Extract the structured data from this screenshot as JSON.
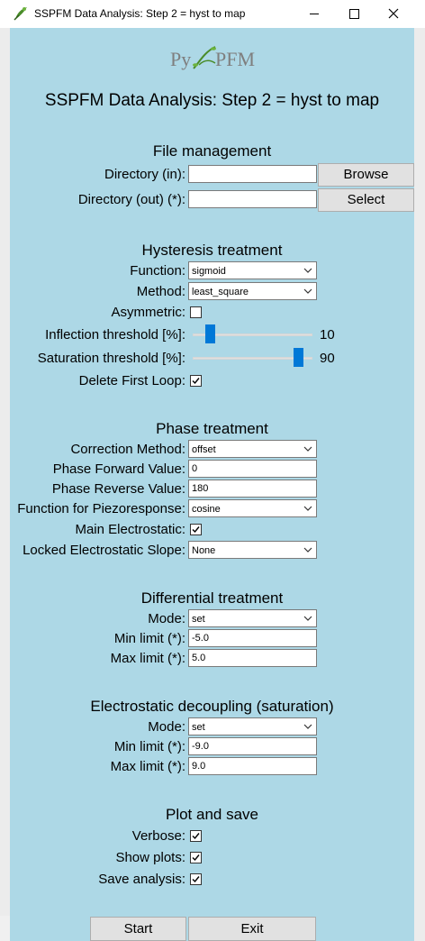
{
  "window": {
    "title": "SSPFM Data Analysis: Step 2 = hyst to map",
    "icon": "pfm-leaf-icon"
  },
  "logo": {
    "left": "Py",
    "right": "PFM"
  },
  "main_title": "SSPFM Data Analysis: Step 2 = hyst to map",
  "colors": {
    "background": "#add8e6",
    "accent": "#0078d7",
    "logo_green": "#4a8c2a",
    "logo_gray": "#7f7f7f"
  },
  "file_management": {
    "title": "File management",
    "dir_in_label": "Directory (in):",
    "dir_in_value": "",
    "browse_label": "Browse",
    "dir_out_label": "Directory (out) (*):",
    "dir_out_value": "",
    "select_label": "Select"
  },
  "hysteresis": {
    "title": "Hysteresis treatment",
    "function_label": "Function:",
    "function_value": "sigmoid",
    "method_label": "Method:",
    "method_value": "least_square",
    "asymmetric_label": "Asymmetric:",
    "asymmetric_checked": false,
    "inflection_label": "Inflection threshold [%]:",
    "inflection_value": "10",
    "saturation_label": "Saturation threshold [%]:",
    "saturation_value": "90",
    "delete_first_loop_label": "Delete First Loop:",
    "delete_first_loop_checked": true
  },
  "phase": {
    "title": "Phase treatment",
    "correction_label": "Correction Method:",
    "correction_value": "offset",
    "forward_label": "Phase Forward Value:",
    "forward_value": "0",
    "reverse_label": "Phase Reverse Value:",
    "reverse_value": "180",
    "piezo_label": "Function for Piezoresponse:",
    "piezo_value": "cosine",
    "main_elec_label": "Main Electrostatic:",
    "main_elec_checked": true,
    "locked_label": "Locked Electrostatic Slope:",
    "locked_value": "None"
  },
  "differential": {
    "title": "Differential treatment",
    "mode_label": "Mode:",
    "mode_value": "set",
    "min_label": "Min limit (*):",
    "min_value": "-5.0",
    "max_label": "Max limit (*):",
    "max_value": "5.0"
  },
  "electrostatic": {
    "title": "Electrostatic decoupling (saturation)",
    "mode_label": "Mode:",
    "mode_value": "set",
    "min_label": "Min limit (*):",
    "min_value": "-9.0",
    "max_label": "Max limit (*):",
    "max_value": "9.0"
  },
  "plot_save": {
    "title": "Plot and save",
    "verbose_label": "Verbose:",
    "verbose_checked": true,
    "show_plots_label": "Show plots:",
    "show_plots_checked": true,
    "save_label": "Save analysis:",
    "save_checked": true
  },
  "buttons": {
    "start": "Start",
    "exit": "Exit"
  }
}
